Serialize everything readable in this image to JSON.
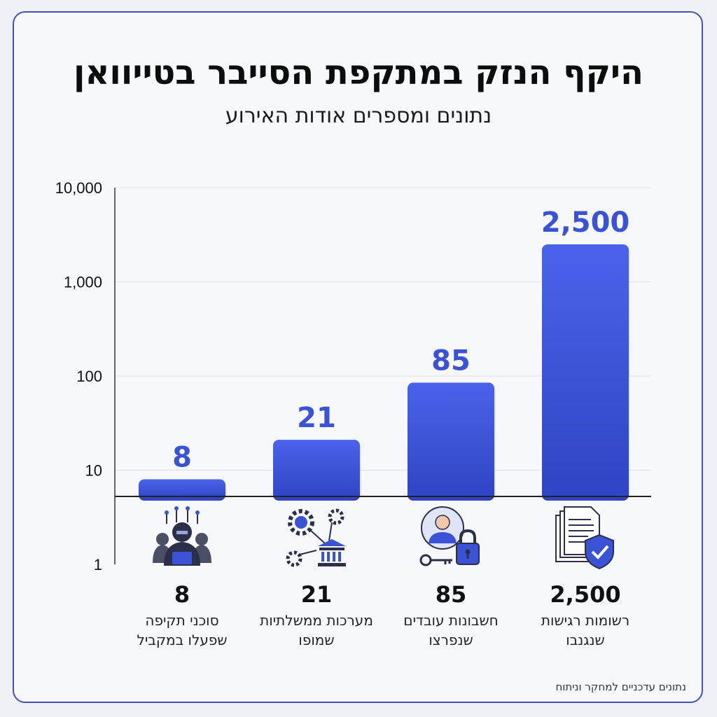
{
  "header": {
    "title": "היקף הנזק במתקפת הסייבר בטייוואן",
    "subtitle": "נתונים ומספרים אודות האירוע"
  },
  "colors": {
    "bar": "#3a52d6",
    "frame": "#4450b8",
    "accent": "#3a52d6"
  },
  "chart_data": {
    "type": "bar",
    "yscale": "log",
    "ylim": [
      1,
      10000
    ],
    "yticks": [
      "1",
      "10",
      "100",
      "1,000",
      "10,000"
    ],
    "categories": [
      "סוכני תקיפה שפעלו במקביל",
      "מערכות ממשלתיות שמופו",
      "חשבונות עובדים שנפרצו",
      "רשומות רגישות שנגנבו"
    ],
    "values": [
      8,
      21,
      85,
      2500
    ],
    "data_labels": [
      "8",
      "21",
      "85",
      "2,500"
    ],
    "grid": true
  },
  "categories": [
    {
      "value": "8",
      "line1": "סוכני תקיפה",
      "line2": "שפעלו במקביל",
      "icon": "hackers-icon"
    },
    {
      "value": "21",
      "line1": "מערכות ממשלתיות",
      "line2": "שמופו",
      "icon": "government-network-icon"
    },
    {
      "value": "85",
      "line1": "חשבונות עובדים",
      "line2": "שנפרצו",
      "icon": "employee-lock-icon"
    },
    {
      "value": "2,500",
      "line1": "רשומות רגישות",
      "line2": "שנגנבו",
      "icon": "documents-shield-icon"
    }
  ],
  "footer": "נתונים עדכניים למחקר וניתוח"
}
